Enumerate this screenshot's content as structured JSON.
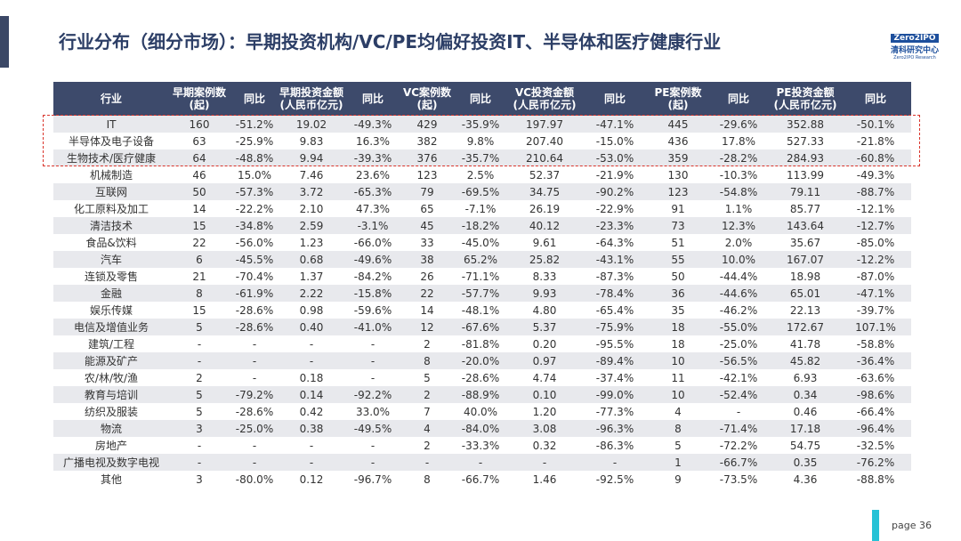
{
  "header": {
    "title": "行业分布（细分市场）：早期投资机构/VC/PE均偏好投资IT、半导体和医疗健康行业",
    "logo": {
      "brand": "Zero2IPO",
      "name": "清科研究中心",
      "sub": "Zero2IPO Research"
    }
  },
  "table": {
    "header": [
      [
        "行业"
      ],
      [
        "早期案例数",
        "(起)"
      ],
      [
        "同比"
      ],
      [
        "早期投资金额",
        "(人民币亿元)"
      ],
      [
        "同比"
      ],
      [
        "VC案例数",
        "(起)"
      ],
      [
        "同比"
      ],
      [
        "VC投资金额",
        "(人民币亿元)"
      ],
      [
        "同比"
      ],
      [
        "PE案例数",
        "(起)"
      ],
      [
        "同比"
      ],
      [
        "PE投资金额",
        "(人民币亿元)"
      ],
      [
        "同比"
      ]
    ],
    "rows": [
      [
        "IT",
        "160",
        "-51.2%",
        "19.02",
        "-49.3%",
        "429",
        "-35.9%",
        "197.97",
        "-47.1%",
        "445",
        "-29.6%",
        "352.88",
        "-50.1%"
      ],
      [
        "半导体及电子设备",
        "63",
        "-25.9%",
        "9.83",
        "16.3%",
        "382",
        "9.8%",
        "207.40",
        "-15.0%",
        "436",
        "17.8%",
        "527.33",
        "-21.8%"
      ],
      [
        "生物技术/医疗健康",
        "64",
        "-48.8%",
        "9.94",
        "-39.3%",
        "376",
        "-35.7%",
        "210.64",
        "-53.0%",
        "359",
        "-28.2%",
        "284.93",
        "-60.8%"
      ],
      [
        "机械制造",
        "46",
        "15.0%",
        "7.46",
        "23.6%",
        "123",
        "2.5%",
        "52.37",
        "-21.9%",
        "130",
        "-10.3%",
        "113.99",
        "-49.3%"
      ],
      [
        "互联网",
        "50",
        "-57.3%",
        "3.72",
        "-65.3%",
        "79",
        "-69.5%",
        "34.75",
        "-90.2%",
        "123",
        "-54.8%",
        "79.11",
        "-88.7%"
      ],
      [
        "化工原料及加工",
        "14",
        "-22.2%",
        "2.10",
        "47.3%",
        "65",
        "-7.1%",
        "26.19",
        "-22.9%",
        "91",
        "1.1%",
        "85.77",
        "-12.1%"
      ],
      [
        "清洁技术",
        "15",
        "-34.8%",
        "2.59",
        "-3.1%",
        "45",
        "-18.2%",
        "40.12",
        "-23.3%",
        "73",
        "12.3%",
        "143.64",
        "-12.7%"
      ],
      [
        "食品&饮料",
        "22",
        "-56.0%",
        "1.23",
        "-66.0%",
        "33",
        "-45.0%",
        "9.61",
        "-64.3%",
        "51",
        "2.0%",
        "35.67",
        "-85.0%"
      ],
      [
        "汽车",
        "6",
        "-45.5%",
        "0.68",
        "-49.6%",
        "38",
        "65.2%",
        "25.82",
        "-43.1%",
        "55",
        "10.0%",
        "167.07",
        "-12.2%"
      ],
      [
        "连锁及零售",
        "21",
        "-70.4%",
        "1.37",
        "-84.2%",
        "26",
        "-71.1%",
        "8.33",
        "-87.3%",
        "50",
        "-44.4%",
        "18.98",
        "-87.0%"
      ],
      [
        "金融",
        "8",
        "-61.9%",
        "2.22",
        "-15.8%",
        "22",
        "-57.7%",
        "9.93",
        "-78.4%",
        "36",
        "-44.6%",
        "65.01",
        "-47.1%"
      ],
      [
        "娱乐传媒",
        "15",
        "-28.6%",
        "0.98",
        "-59.6%",
        "14",
        "-48.1%",
        "4.80",
        "-65.4%",
        "35",
        "-46.2%",
        "22.13",
        "-39.7%"
      ],
      [
        "电信及增值业务",
        "5",
        "-28.6%",
        "0.40",
        "-41.0%",
        "12",
        "-67.6%",
        "5.37",
        "-75.9%",
        "18",
        "-55.0%",
        "172.67",
        "107.1%"
      ],
      [
        "建筑/工程",
        "-",
        "-",
        "-",
        "-",
        "2",
        "-81.8%",
        "0.20",
        "-95.5%",
        "18",
        "-25.0%",
        "41.78",
        "-58.8%"
      ],
      [
        "能源及矿产",
        "-",
        "-",
        "-",
        "-",
        "8",
        "-20.0%",
        "0.97",
        "-89.4%",
        "10",
        "-56.5%",
        "45.82",
        "-36.4%"
      ],
      [
        "农/林/牧/渔",
        "2",
        "-",
        "0.18",
        "-",
        "5",
        "-28.6%",
        "4.74",
        "-37.4%",
        "11",
        "-42.1%",
        "6.93",
        "-63.6%"
      ],
      [
        "教育与培训",
        "5",
        "-79.2%",
        "0.14",
        "-92.2%",
        "2",
        "-88.9%",
        "0.10",
        "-99.0%",
        "10",
        "-52.4%",
        "0.34",
        "-98.6%"
      ],
      [
        "纺织及服装",
        "5",
        "-28.6%",
        "0.42",
        "33.0%",
        "7",
        "40.0%",
        "1.20",
        "-77.3%",
        "4",
        "-",
        "0.46",
        "-66.4%"
      ],
      [
        "物流",
        "3",
        "-25.0%",
        "0.38",
        "-49.5%",
        "4",
        "-84.0%",
        "3.08",
        "-96.3%",
        "8",
        "-71.4%",
        "17.18",
        "-96.4%"
      ],
      [
        "房地产",
        "-",
        "-",
        "-",
        "-",
        "2",
        "-33.3%",
        "0.32",
        "-86.3%",
        "5",
        "-72.2%",
        "54.75",
        "-32.5%"
      ],
      [
        "广播电视及数字电视",
        "-",
        "-",
        "-",
        "-",
        "-",
        "-",
        "-",
        "-",
        "1",
        "-66.7%",
        "0.35",
        "-76.2%"
      ],
      [
        "其他",
        "3",
        "-80.0%",
        "0.12",
        "-96.7%",
        "8",
        "-66.7%",
        "1.46",
        "-92.5%",
        "9",
        "-73.5%",
        "4.36",
        "-88.8%"
      ]
    ]
  },
  "footer": {
    "page": "page  36"
  }
}
